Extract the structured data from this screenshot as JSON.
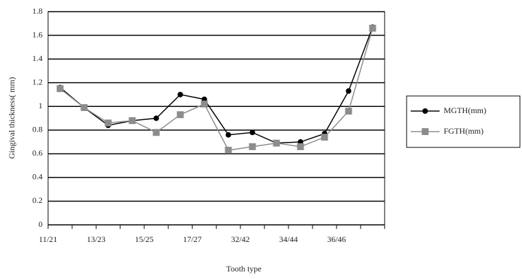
{
  "chart_data": {
    "type": "line",
    "x_label": "Tooth type",
    "y_label": "Gingival thickness( mm)",
    "categories": [
      "11/21",
      null,
      "13/23",
      null,
      "15/25",
      null,
      "17/27",
      null,
      "32/42",
      null,
      "34/44",
      null,
      "36/46",
      null
    ],
    "series": [
      {
        "name": "MGTH(mm)",
        "color": "#000000",
        "marker": "circle",
        "values": [
          1.16,
          0.99,
          0.84,
          0.88,
          0.9,
          1.1,
          1.06,
          0.76,
          0.78,
          0.69,
          0.7,
          0.77,
          1.13,
          1.67
        ]
      },
      {
        "name": "FGTH(mm)",
        "color": "#8c8c8c",
        "marker": "square",
        "values": [
          1.15,
          0.99,
          0.86,
          0.88,
          0.78,
          0.93,
          1.02,
          0.63,
          0.66,
          0.69,
          0.66,
          0.74,
          0.96,
          1.66
        ]
      }
    ],
    "ylim": [
      0,
      1.8
    ],
    "yticks": [
      0,
      0.2,
      0.4,
      0.6,
      0.8,
      1,
      1.2,
      1.4,
      1.6,
      1.8
    ],
    "grid": true,
    "legend": "right"
  }
}
